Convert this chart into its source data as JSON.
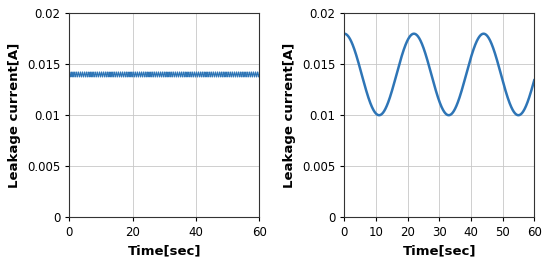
{
  "left_plot": {
    "x_range": [
      0,
      60
    ],
    "y_range": [
      0,
      0.02
    ],
    "y_ticks": [
      0,
      0.005,
      0.01,
      0.015,
      0.02
    ],
    "x_ticks": [
      0,
      20,
      40,
      60
    ],
    "mean_value": 0.014,
    "ripple_amplitude": 0.00025,
    "ripple_freq_hz": 1.5,
    "xlabel": "Time[sec]",
    "ylabel": "Leakage current[A]",
    "line_color": "#2e75b6",
    "line_width": 0.8
  },
  "right_plot": {
    "x_range": [
      0,
      60
    ],
    "y_range": [
      0,
      0.02
    ],
    "y_ticks": [
      0,
      0.005,
      0.01,
      0.015,
      0.02
    ],
    "x_ticks": [
      0,
      10,
      20,
      30,
      40,
      50,
      60
    ],
    "mean_value": 0.014,
    "amplitude": 0.004,
    "period": 22.0,
    "phase_shift": -5.5,
    "xlabel": "Time[sec]",
    "ylabel": "Leakage current[A]",
    "line_color": "#2e75b6",
    "line_width": 1.8
  },
  "grid_color": "#c8c8c8",
  "grid_alpha": 1.0,
  "label_fontsize": 9.5,
  "tick_fontsize": 8.5,
  "fig_bgcolor": "#ffffff",
  "y_tick_labels": [
    "0",
    "0.005",
    "0.01",
    "0.015",
    "0.02"
  ]
}
